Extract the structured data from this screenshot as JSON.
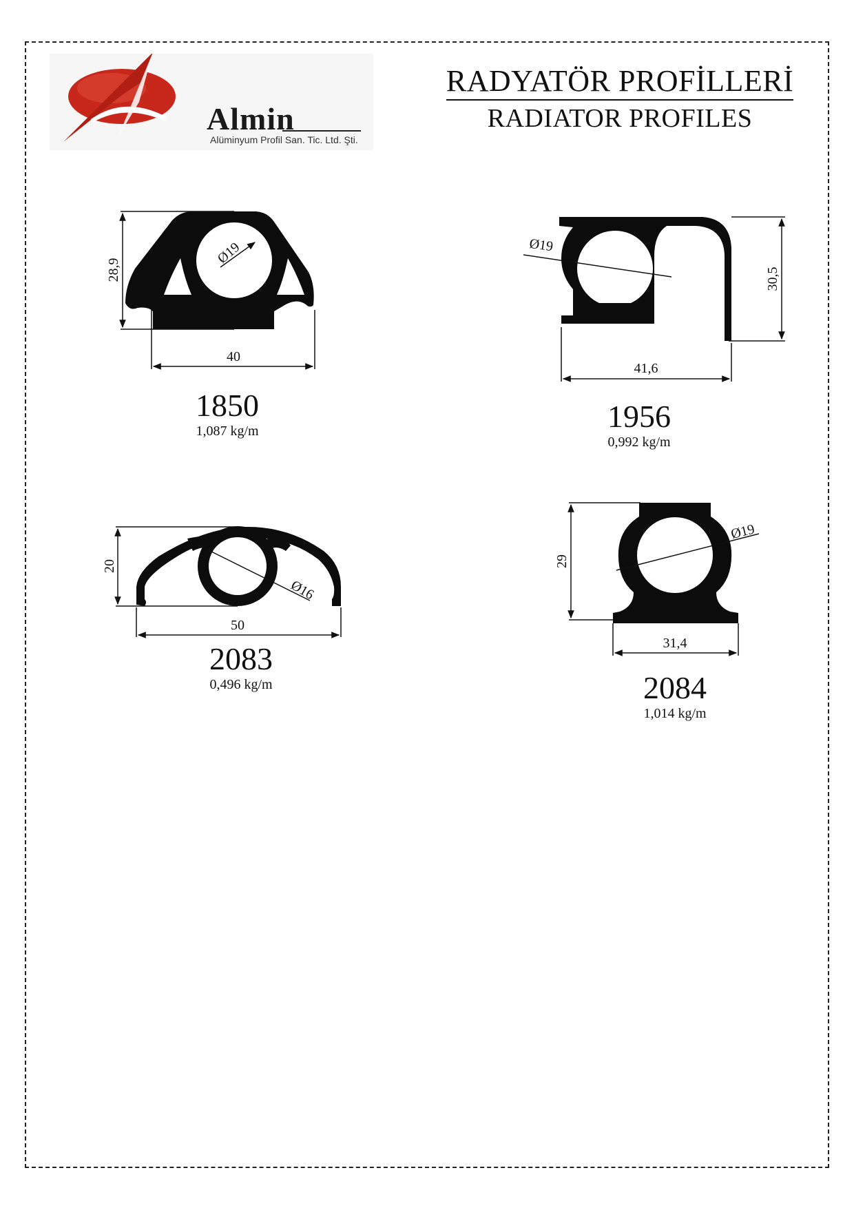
{
  "header": {
    "brand_name": "Almin",
    "brand_subtitle": "Alüminyum Profil San. Tic. Ltd. Şti.",
    "title_tr": "RADYATÖR PROFİLLERİ",
    "title_en": "RADIATOR PROFILES"
  },
  "colors": {
    "logo_red": "#c8281c",
    "profile_fill": "#0c0c0c",
    "line": "#111111"
  },
  "profiles": [
    {
      "code": "1850",
      "weight": "1,087 kg/m",
      "width": "40",
      "height": "28,9",
      "diameter": "Ø19"
    },
    {
      "code": "1956",
      "weight": "0,992 kg/m",
      "width": "41,6",
      "height": "30,5",
      "diameter": "Ø19"
    },
    {
      "code": "2083",
      "weight": "0,496 kg/m",
      "width": "50",
      "height": "20",
      "diameter": "Ø16"
    },
    {
      "code": "2084",
      "weight": "1,014 kg/m",
      "width": "31,4",
      "height": "29",
      "diameter": "Ø19"
    }
  ]
}
